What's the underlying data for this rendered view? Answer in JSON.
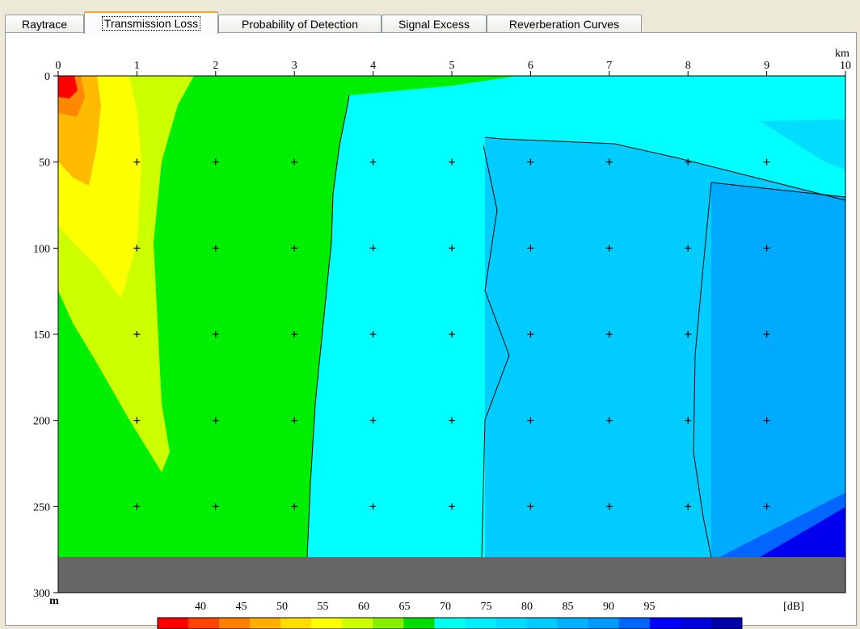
{
  "tabs": [
    {
      "label": "Raytrace",
      "active": false
    },
    {
      "label": "Transmission Loss",
      "active": true
    },
    {
      "label": "Probability of Detection",
      "active": false
    },
    {
      "label": "Signal Excess",
      "active": false
    },
    {
      "label": "Reverberation Curves",
      "active": false
    }
  ],
  "plot": {
    "x_unit": "km",
    "y_unit": "m",
    "x_ticks": [
      "0",
      "1",
      "2",
      "3",
      "4",
      "5",
      "6",
      "7",
      "8",
      "9",
      "10"
    ],
    "y_ticks": [
      "0",
      "50",
      "100",
      "150",
      "200",
      "250",
      "300"
    ],
    "colorbar_unit": "[dB]",
    "colorbar_labels": [
      "40",
      "45",
      "50",
      "55",
      "60",
      "65",
      "70",
      "75",
      "80",
      "85",
      "90",
      "95"
    ],
    "colorbar_colors": [
      "#ff0000",
      "#ff4400",
      "#ff8000",
      "#ffb000",
      "#ffdd00",
      "#ffff00",
      "#ccff00",
      "#88ee00",
      "#00dd00",
      "#00ffee",
      "#00eeff",
      "#00ddff",
      "#00ccff",
      "#00b2ff",
      "#0099ff",
      "#0066ff",
      "#0000ff",
      "#0000dd",
      "#0000aa"
    ],
    "seafloor_color": "#666666"
  }
}
